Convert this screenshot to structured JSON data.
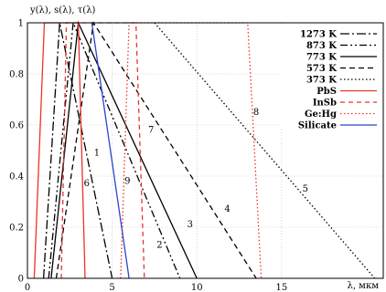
{
  "chart_data": {
    "type": "line",
    "ylabel": "y(λ), s(λ), τ(λ)",
    "xlabel": "λ, мкм",
    "xlim": [
      0,
      21
    ],
    "ylim": [
      0,
      1
    ],
    "xticks": [
      0,
      5,
      10,
      15
    ],
    "yticks": [
      0,
      0.2,
      0.4,
      0.6,
      0.8,
      1
    ],
    "ytick_labels": [
      "0",
      "0.2",
      "0.4",
      "0.6",
      "0.8",
      "1"
    ],
    "grid": true,
    "legend_position": "top-right",
    "legend": [
      {
        "label": "1273 K",
        "color": "#000000",
        "dash": "10,3,2,3"
      },
      {
        "label": "873 K",
        "color": "#000000",
        "dash": "8,3,2,3,2,3"
      },
      {
        "label": "773 K",
        "color": "#000000",
        "dash": ""
      },
      {
        "label": "573 K",
        "color": "#000000",
        "dash": "6,4"
      },
      {
        "label": "373 K",
        "color": "#000000",
        "dash": "1.5,2.5"
      },
      {
        "label": "PbS",
        "color": "#e8342a",
        "dash": ""
      },
      {
        "label": "InSb",
        "color": "#e8342a",
        "dash": "5,4"
      },
      {
        "label": "Ge:Hg",
        "color": "#e8342a",
        "dash": "1.5,2.5"
      },
      {
        "label": "Silicate",
        "color": "#2a45c8",
        "dash": ""
      }
    ],
    "series": [
      {
        "color": "#000000",
        "dash": "10,3,2,3",
        "points": [
          [
            0.95,
            0
          ],
          [
            1.9,
            1
          ],
          [
            1.9,
            1
          ],
          [
            5.0,
            0
          ]
        ]
      },
      {
        "color": "#000000",
        "dash": "8,3,2,3,2,3",
        "points": [
          [
            1.25,
            0
          ],
          [
            2.7,
            1
          ],
          [
            2.7,
            1
          ],
          [
            9.0,
            0
          ]
        ]
      },
      {
        "color": "#000000",
        "dash": "",
        "points": [
          [
            1.4,
            0
          ],
          [
            3.0,
            1
          ],
          [
            3.0,
            1
          ],
          [
            10.0,
            0
          ]
        ]
      },
      {
        "color": "#000000",
        "dash": "6,4",
        "points": [
          [
            1.7,
            0
          ],
          [
            3.9,
            1
          ],
          [
            3.9,
            1
          ],
          [
            13.5,
            0
          ]
        ]
      },
      {
        "color": "#000000",
        "dash": "1.5,2.5",
        "points": [
          [
            7.5,
            1
          ],
          [
            20.5,
            0
          ]
        ]
      },
      {
        "color": "#e8342a",
        "dash": "",
        "points": [
          [
            0.4,
            0
          ],
          [
            1.0,
            1
          ],
          [
            3.0,
            1
          ],
          [
            3.4,
            0
          ]
        ]
      },
      {
        "color": "#e8342a",
        "dash": "5,4",
        "points": [
          [
            2.0,
            0
          ],
          [
            2.3,
            1
          ],
          [
            6.4,
            1
          ],
          [
            6.9,
            0
          ]
        ]
      },
      {
        "color": "#e8342a",
        "dash": "1.5,2.5",
        "points": [
          [
            5.5,
            0
          ],
          [
            6.0,
            1
          ],
          [
            13.0,
            1
          ],
          [
            13.8,
            0
          ]
        ]
      },
      {
        "color": "#2a45c8",
        "dash": "",
        "points": [
          [
            3.8,
            1
          ],
          [
            6.0,
            0
          ]
        ]
      }
    ],
    "curve_labels": [
      {
        "text": "1",
        "x": 4.1,
        "y": 0.48
      },
      {
        "text": "2",
        "x": 7.8,
        "y": 0.12
      },
      {
        "text": "3",
        "x": 9.6,
        "y": 0.2
      },
      {
        "text": "4",
        "x": 11.8,
        "y": 0.26
      },
      {
        "text": "5",
        "x": 16.4,
        "y": 0.34
      },
      {
        "text": "6",
        "x": 3.5,
        "y": 0.36
      },
      {
        "text": "7",
        "x": 7.3,
        "y": 0.57
      },
      {
        "text": "8",
        "x": 13.5,
        "y": 0.64
      },
      {
        "text": "9",
        "x": 5.9,
        "y": 0.37
      }
    ]
  }
}
